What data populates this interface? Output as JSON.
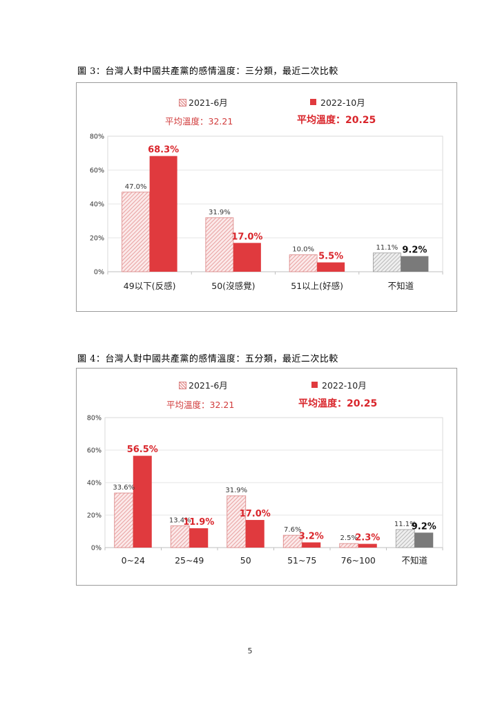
{
  "page_number": "5",
  "figures": [
    {
      "caption": "圖 3：台灣人對中國共產黨的感情溫度：三分類，最近二次比較",
      "legend": [
        {
          "name": "2021-6月",
          "color": "#e8a0a0",
          "pattern": "hatched"
        },
        {
          "name": "2022-10月",
          "color": "#e03a3e",
          "pattern": "solid"
        }
      ],
      "averages": [
        "平均溫度：32.21",
        "平均溫度：20.25"
      ]
    },
    {
      "caption": "圖 4：台灣人對中國共產黨的感情溫度：五分類，最近二次比較",
      "legend": [
        {
          "name": "2021-6月",
          "color": "#e8a0a0",
          "pattern": "hatched"
        },
        {
          "name": "2022-10月",
          "color": "#e03a3e",
          "pattern": "solid"
        }
      ],
      "averages": [
        "平均溫度：32.21",
        "平均溫度：20.25"
      ]
    }
  ],
  "chart_data": [
    {
      "type": "bar",
      "title": "圖 3：台灣人對中國共產黨的感情溫度：三分類，最近二次比較",
      "categories": [
        "49以下(反感)",
        "50(沒感覺)",
        "51以上(好感)",
        "不知道"
      ],
      "series": [
        {
          "name": "2021-6月",
          "values": [
            47.0,
            31.9,
            10.0,
            11.1
          ],
          "labels": [
            "47.0%",
            "31.9%",
            "10.0%",
            "11.1%"
          ]
        },
        {
          "name": "2022-10月",
          "values": [
            68.3,
            17.0,
            5.5,
            9.2
          ],
          "labels": [
            "68.3%",
            "17.0%",
            "5.5%",
            "9.2%"
          ]
        }
      ],
      "ylim": [
        0,
        80
      ],
      "yticks": [
        "0%",
        "20%",
        "40%",
        "60%",
        "80%"
      ],
      "grid": true,
      "legend_position": "top",
      "gray_category": "不知道",
      "colors": {
        "series1": "#e8a0a0",
        "series2": "#e03a3e",
        "gray1": "#b8b8b8",
        "gray2": "#7a7a7a",
        "label_red": "#d9252b"
      }
    },
    {
      "type": "bar",
      "title": "圖 4：台灣人對中國共產黨的感情溫度：五分類，最近二次比較",
      "categories": [
        "0~24",
        "25~49",
        "50",
        "51~75",
        "76~100",
        "不知道"
      ],
      "series": [
        {
          "name": "2021-6月",
          "values": [
            33.6,
            13.4,
            31.9,
            7.6,
            2.5,
            11.1
          ],
          "labels": [
            "33.6%",
            "13.4%",
            "31.9%",
            "7.6%",
            "2.5%",
            "11.1%"
          ]
        },
        {
          "name": "2022-10月",
          "values": [
            56.5,
            11.9,
            17.0,
            3.2,
            2.3,
            9.2
          ],
          "labels": [
            "56.5%",
            "11.9%",
            "17.0%",
            "3.2%",
            "2.3%",
            "9.2%"
          ]
        }
      ],
      "ylim": [
        0,
        80
      ],
      "yticks": [
        "0%",
        "20%",
        "40%",
        "60%",
        "80%"
      ],
      "grid": true,
      "legend_position": "top",
      "gray_category": "不知道",
      "colors": {
        "series1": "#e8a0a0",
        "series2": "#e03a3e",
        "gray1": "#b8b8b8",
        "gray2": "#7a7a7a",
        "label_red": "#d9252b"
      }
    }
  ]
}
